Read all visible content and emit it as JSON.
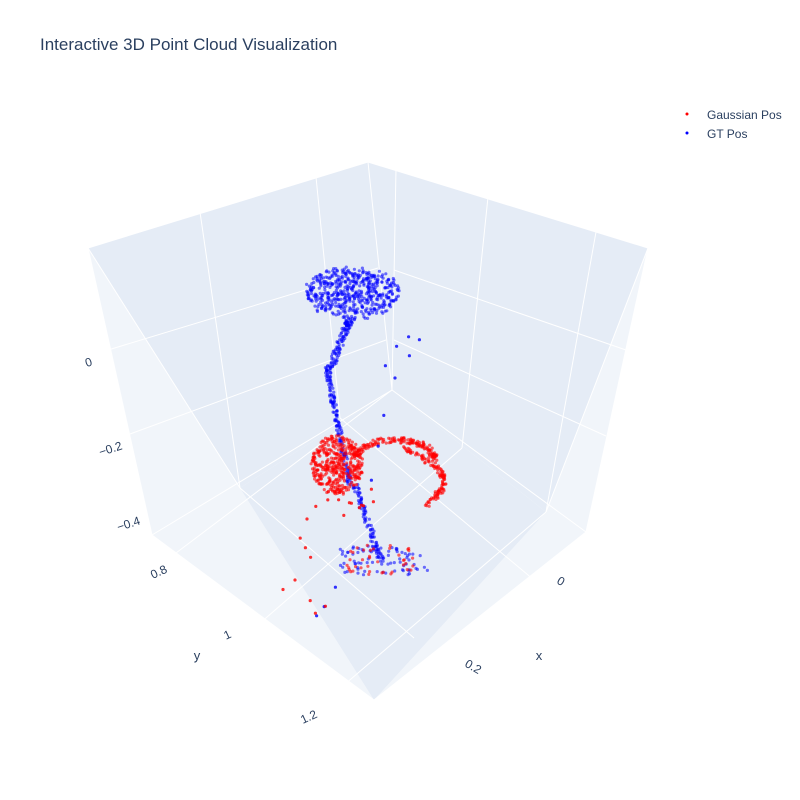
{
  "chart_data": {
    "type": "scatter",
    "title": "Interactive 3D Point Cloud Visualization",
    "xlabel": "x",
    "ylabel": "y",
    "zlabel": "",
    "x_ticks": [
      "0",
      "0.2"
    ],
    "y_ticks": [
      "0.8",
      "1",
      "1.2"
    ],
    "z_ticks": [
      "0",
      "−0.2",
      "−0.4"
    ],
    "legend_position": "top-right",
    "series": [
      {
        "name": "Gaussian Pos",
        "color": "#ff0000",
        "points": [
          {
            "x": 0.04,
            "y": 0.95,
            "z": -0.29
          },
          {
            "x": 0.06,
            "y": 0.96,
            "z": -0.31
          },
          {
            "x": 0.08,
            "y": 0.97,
            "z": -0.27
          },
          {
            "x": 0.07,
            "y": 0.94,
            "z": -0.33
          },
          {
            "x": 0.05,
            "y": 0.98,
            "z": -0.3
          },
          {
            "x": 0.09,
            "y": 0.95,
            "z": -0.28
          },
          {
            "x": 0.03,
            "y": 0.97,
            "z": -0.32
          },
          {
            "x": 0.1,
            "y": 0.96,
            "z": -0.3
          },
          {
            "x": 0.12,
            "y": 0.93,
            "z": -0.26
          },
          {
            "x": 0.15,
            "y": 0.91,
            "z": -0.25
          },
          {
            "x": 0.18,
            "y": 0.9,
            "z": -0.25
          },
          {
            "x": 0.2,
            "y": 0.9,
            "z": -0.27
          },
          {
            "x": 0.21,
            "y": 0.92,
            "z": -0.3
          },
          {
            "x": 0.19,
            "y": 0.95,
            "z": -0.32
          },
          {
            "x": 0.17,
            "y": 0.98,
            "z": -0.34
          },
          {
            "x": 0.2,
            "y": 1.0,
            "z": -0.36
          },
          {
            "x": 0.23,
            "y": 0.99,
            "z": -0.37
          },
          {
            "x": 0.16,
            "y": 1.02,
            "z": -0.45
          },
          {
            "x": 0.14,
            "y": 1.05,
            "z": -0.48
          },
          {
            "x": 0.12,
            "y": 1.04,
            "z": -0.49
          }
        ]
      },
      {
        "name": "GT Pos",
        "color": "#0000ff",
        "points": [
          {
            "x": -0.05,
            "y": 0.88,
            "z": 0.03
          },
          {
            "x": -0.02,
            "y": 0.86,
            "z": 0.05
          },
          {
            "x": 0.01,
            "y": 0.85,
            "z": 0.04
          },
          {
            "x": 0.03,
            "y": 0.87,
            "z": 0.02
          },
          {
            "x": -0.03,
            "y": 0.89,
            "z": 0.01
          },
          {
            "x": 0.0,
            "y": 0.9,
            "z": -0.02
          },
          {
            "x": 0.02,
            "y": 0.92,
            "z": -0.1
          },
          {
            "x": 0.03,
            "y": 0.93,
            "z": -0.18
          },
          {
            "x": 0.04,
            "y": 0.95,
            "z": -0.26
          },
          {
            "x": 0.05,
            "y": 0.97,
            "z": -0.34
          },
          {
            "x": 0.08,
            "y": 1.0,
            "z": -0.4
          },
          {
            "x": 0.1,
            "y": 1.03,
            "z": -0.46
          },
          {
            "x": 0.12,
            "y": 1.05,
            "z": -0.48
          },
          {
            "x": 0.14,
            "y": 1.04,
            "z": -0.5
          }
        ]
      }
    ]
  }
}
